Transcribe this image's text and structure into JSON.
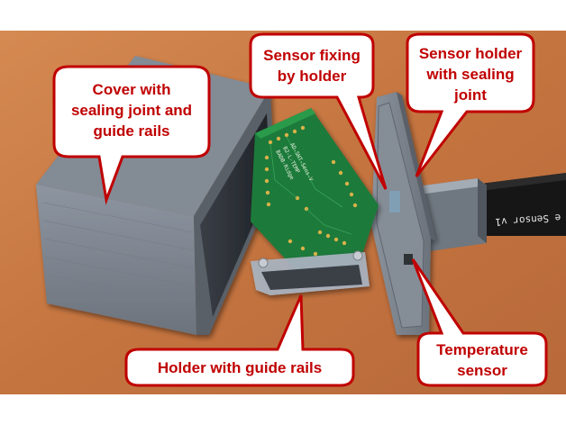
{
  "callouts": {
    "cover": [
      "Cover with",
      "sealing joint and",
      "guide rails"
    ],
    "sensor_fixing": [
      "Sensor fixing",
      "by holder"
    ],
    "sensor_holder": [
      "Sensor holder",
      "with sealing",
      "joint"
    ],
    "holder": [
      "Holder with guide rails"
    ],
    "temperature": [
      "Temperature",
      "sensor"
    ]
  },
  "pcb_print": [
    "AD-SHT-Sens-V",
    "B2-L-TEMP",
    "BADB-Ridge"
  ],
  "cable_print": "e Sensor v1",
  "colors": {
    "table": "#c77a44",
    "enclosure": "#7d8590",
    "pcb": "#1f7a3a",
    "callout_border": "#c00000",
    "callout_text": "#c00000"
  }
}
